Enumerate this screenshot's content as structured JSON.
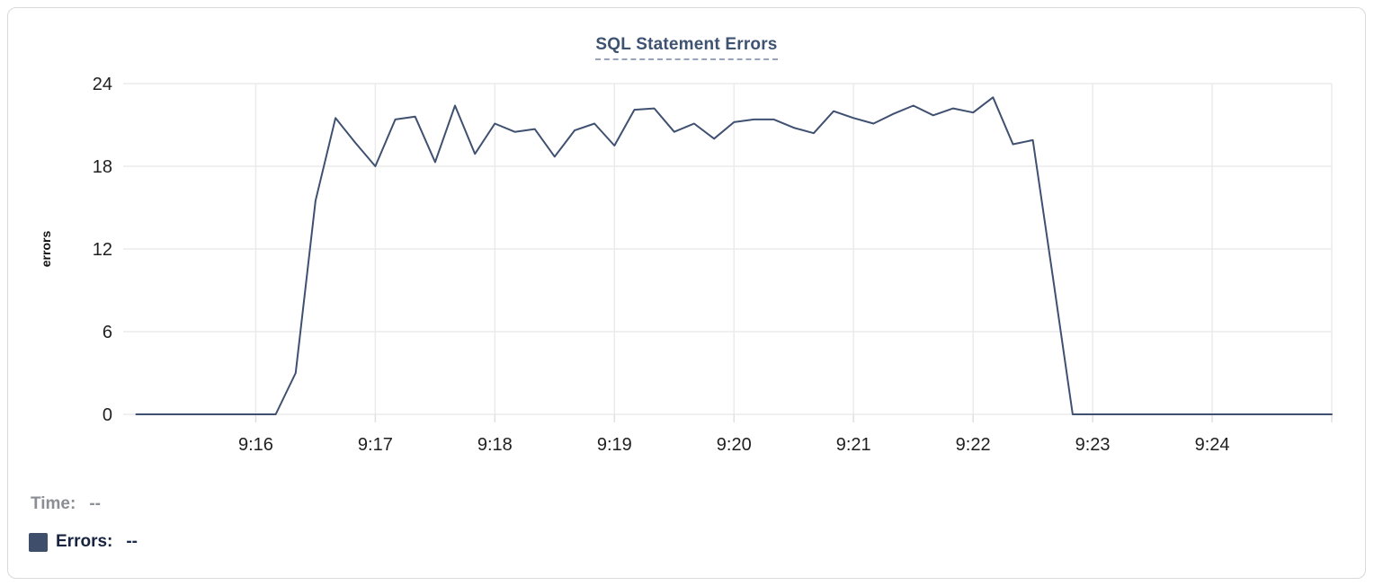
{
  "chart_data": {
    "type": "line",
    "title": "SQL Statement Errors",
    "xlabel": "",
    "ylabel": "errors",
    "ylim": [
      0,
      24
    ],
    "y_ticks": [
      0,
      6,
      12,
      18,
      24
    ],
    "x_tick_labels": [
      "9:16",
      "9:17",
      "9:18",
      "9:19",
      "9:20",
      "9:21",
      "9:22",
      "9:23",
      "9:24"
    ],
    "grid": true,
    "legend_position": "bottom-left",
    "series": [
      {
        "name": "Errors",
        "start_time": "9:15:00",
        "end_time": "9:25:00",
        "interval_seconds": 10,
        "values": [
          0,
          0,
          0,
          0,
          0,
          0,
          0,
          0,
          3,
          15.5,
          21.5,
          19.7,
          18,
          21.4,
          21.6,
          18.3,
          22.4,
          18.9,
          21.1,
          20.5,
          20.7,
          18.7,
          20.6,
          21.1,
          19.5,
          22.1,
          22.2,
          20.5,
          21.1,
          20,
          21.2,
          21.4,
          21.4,
          20.8,
          20.4,
          22,
          21.5,
          21.1,
          21.8,
          22.4,
          21.7,
          22.2,
          21.9,
          23,
          19.6,
          19.9,
          10,
          0,
          0,
          0,
          0,
          0,
          0,
          0,
          0,
          0,
          0,
          0,
          0,
          0,
          0
        ]
      }
    ]
  },
  "legend": {
    "time_label": "Time:",
    "time_value": "--",
    "errors_label": "Errors:",
    "errors_value": "--"
  },
  "colors": {
    "line": "#3f5070",
    "swatch": "#3f4e6b",
    "title": "#3e5272",
    "grid": "#ebebeb",
    "tick_stub": "#e0e0e0",
    "tick_text": "#1f1f1f",
    "axis_label_text": "#111111"
  }
}
